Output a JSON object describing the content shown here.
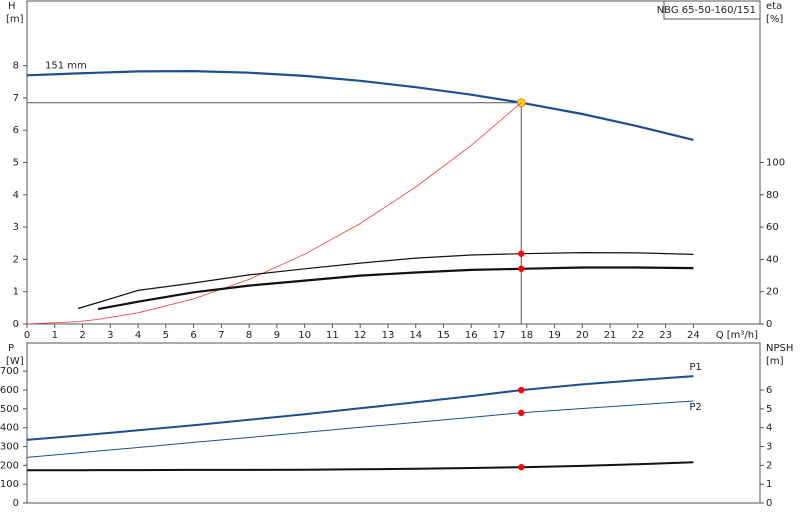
{
  "chart_data": [
    {
      "type": "line",
      "title": "NBG 65-50-160/151",
      "ylabel": "H",
      "yunit": "[m]",
      "y2label": "eta",
      "y2unit": "[%]",
      "xlabel": "Q [m³/h]",
      "x": [
        0,
        1.84,
        2.56,
        4,
        6,
        8,
        10,
        12,
        14,
        16,
        17.8,
        20,
        22,
        24
      ],
      "xlim": [
        0,
        26.4
      ],
      "xticks": [
        0,
        1,
        2,
        3,
        4,
        5,
        6,
        7,
        8,
        9,
        10,
        11,
        12,
        13,
        14,
        15,
        16,
        17,
        18,
        19,
        20,
        21,
        22,
        23,
        24
      ],
      "ylim": [
        0,
        10
      ],
      "yticks": [
        0,
        1,
        2,
        3,
        4,
        5,
        6,
        7,
        8
      ],
      "y2lim": [
        0,
        200
      ],
      "y2ticks": [
        0,
        20,
        40,
        60,
        80,
        100
      ],
      "marker_x": 17.8,
      "series": [
        {
          "label": "151 mm",
          "color": "#1d4f8c",
          "line_width": 2.2,
          "marker_color": "#ffd21f",
          "crosshair": true,
          "values": [
            7.7,
            7.76,
            7.78,
            7.82,
            7.83,
            7.78,
            7.68,
            7.53,
            7.33,
            7.1,
            6.85,
            6.5,
            6.12,
            5.7
          ]
        },
        {
          "color": "#f03a3a",
          "line_width": 0.8,
          "values": [
            0,
            0.073,
            0.142,
            0.346,
            0.778,
            1.38,
            2.16,
            3.11,
            4.24,
            5.53,
            6.85,
            null,
            null,
            null
          ]
        },
        {
          "color": "#111111",
          "line_width": 1.2,
          "axis": "y2",
          "marker_color": "#ff0000",
          "values": [
            null,
            9.6,
            13.3,
            20.8,
            25.4,
            30.4,
            34.2,
            37.7,
            40.8,
            42.7,
            43.5,
            44.2,
            44,
            43.1
          ]
        },
        {
          "color": "#111111",
          "line_width": 2.2,
          "axis": "y2",
          "marker_color": "#ff0000",
          "values": [
            null,
            null,
            9.2,
            13.8,
            19.6,
            23.8,
            26.9,
            30,
            31.9,
            33.5,
            34.2,
            35,
            35,
            34.6
          ]
        }
      ]
    },
    {
      "type": "line",
      "ylabel": "P",
      "yunit": "[W]",
      "y2label": "NPSH",
      "y2unit": "[m]",
      "x": [
        0,
        1.84,
        2.56,
        4,
        6,
        8,
        10,
        12,
        14,
        16,
        17.8,
        20,
        22,
        24
      ],
      "xlim": [
        0,
        26.4
      ],
      "ylim": [
        0,
        850
      ],
      "yticks": [
        0,
        100,
        200,
        300,
        400,
        500,
        600,
        700
      ],
      "y2lim": [
        0,
        8.5
      ],
      "y2ticks": [
        0,
        1,
        2,
        3,
        4,
        5,
        6
      ],
      "marker_x": 17.8,
      "series": [
        {
          "name": "P1",
          "color": "#1d4f8c",
          "line_width": 2,
          "marker_color": "#ff0000",
          "values": [
            335,
            358,
            367,
            386,
            413,
            442,
            472,
            503,
            535,
            568,
            600,
            630,
            653,
            674
          ]
        },
        {
          "name": "P2",
          "color": "#1d4f8c",
          "line_width": 1,
          "marker_color": "#ff0000",
          "values": [
            242,
            266,
            276,
            295,
            322,
            348,
            375,
            402,
            428,
            455,
            479,
            502,
            522,
            542
          ]
        },
        {
          "color": "#111111",
          "line_width": 2,
          "axis": "y2",
          "marker_color": "#ff0000",
          "values": [
            1.74,
            1.74,
            1.75,
            1.75,
            1.76,
            1.76,
            1.77,
            1.79,
            1.82,
            1.86,
            1.9,
            1.97,
            2.06,
            2.16
          ]
        }
      ]
    }
  ]
}
